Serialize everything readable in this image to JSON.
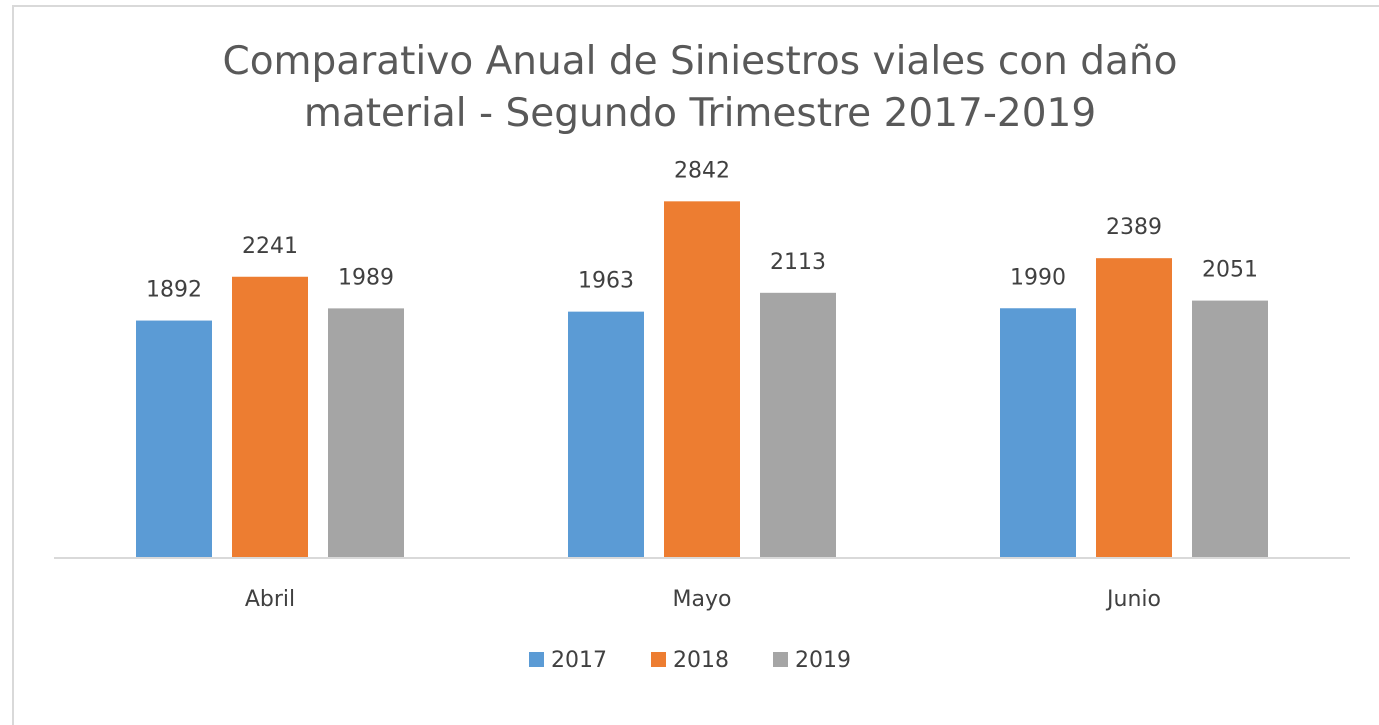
{
  "chart_data": {
    "type": "bar",
    "title": "Comparativo Anual de Siniestros viales con daño material - Segundo Trimestre 2017-2019",
    "categories": [
      "Abril",
      "Mayo",
      "Junio"
    ],
    "series": [
      {
        "name": "2017",
        "color": "#5b9bd5",
        "values": [
          1892,
          1963,
          1990
        ]
      },
      {
        "name": "2018",
        "color": "#ed7d31",
        "values": [
          2241,
          2842,
          2389
        ]
      },
      {
        "name": "2019",
        "color": "#a5a5a5",
        "values": [
          1989,
          2113,
          2051
        ]
      }
    ],
    "ylim": [
      0,
      3000
    ],
    "legend": "bottom"
  }
}
